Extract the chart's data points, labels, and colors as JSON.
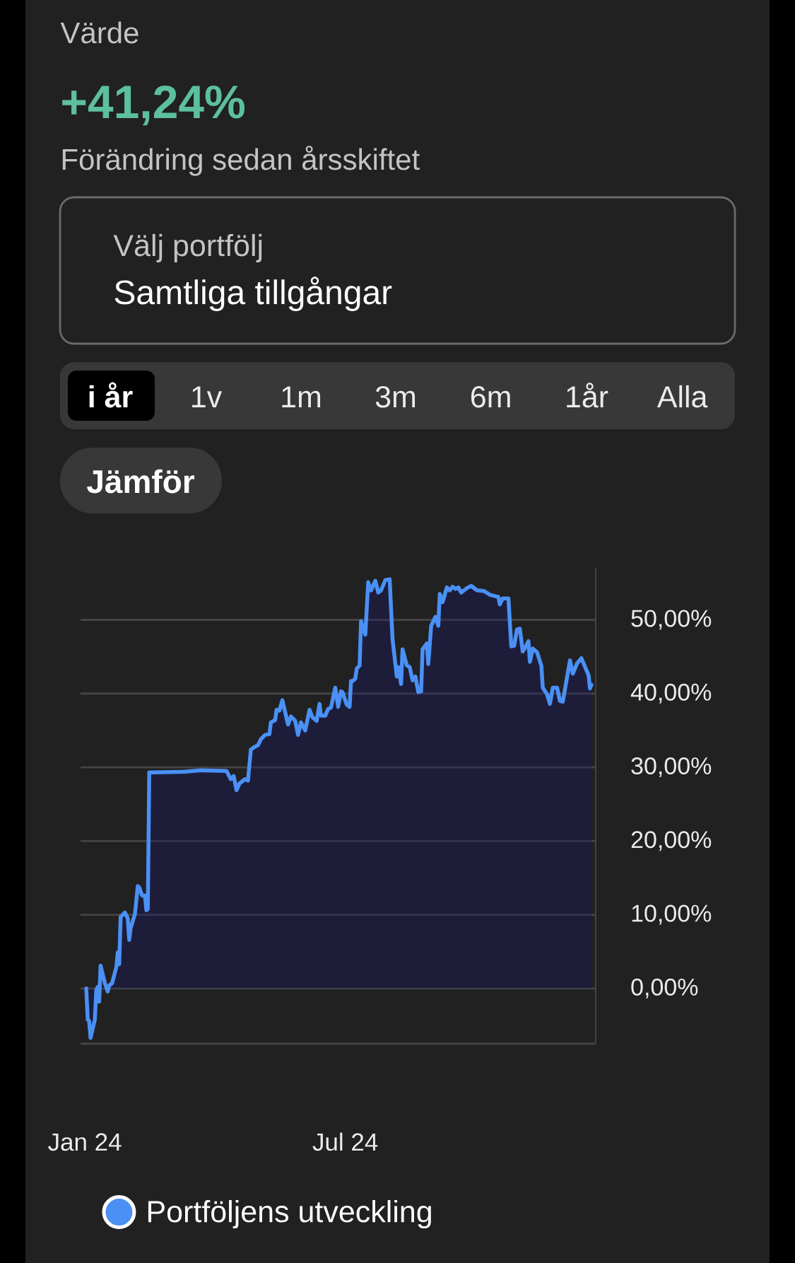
{
  "chart_data": {
    "type": "area",
    "title": "Värde",
    "subtitle": "+41,24%",
    "annotations": [
      "Förändring sedan årsskiftet",
      "Välj portfölj",
      "Samtliga tillgångar",
      "i år",
      "1v",
      "1m",
      "3m",
      "6m",
      "1år",
      "Alla",
      "Jämför"
    ],
    "x": [
      "2024-01-02",
      "2024-01-03",
      "2024-01-04",
      "2024-01-05",
      "2024-01-08",
      "2024-01-09",
      "2024-01-10",
      "2024-01-11",
      "2024-01-12",
      "2024-01-15",
      "2024-01-17",
      "2024-01-18",
      "2024-01-20",
      "2024-01-23",
      "2024-01-24",
      "2024-01-25",
      "2024-01-26",
      "2024-01-29",
      "2024-01-31",
      "2024-02-01",
      "2024-02-02",
      "2024-02-05",
      "2024-02-07",
      "2024-02-08",
      "2024-02-10",
      "2024-02-12",
      "2024-02-13",
      "2024-02-14",
      "2024-02-15",
      "2024-02-18",
      "2024-03-11",
      "2024-03-22",
      "2024-04-09",
      "2024-04-12",
      "2024-04-14",
      "2024-04-16",
      "2024-04-18",
      "2024-04-22",
      "2024-04-24",
      "2024-04-26",
      "2024-04-29",
      "2024-05-01",
      "2024-05-03",
      "2024-05-06",
      "2024-05-09",
      "2024-05-10",
      "2024-05-13",
      "2024-05-14",
      "2024-05-16",
      "2024-05-18",
      "2024-05-22",
      "2024-05-24",
      "2024-05-27",
      "2024-05-29",
      "2024-05-31",
      "2024-06-03",
      "2024-06-06",
      "2024-06-08",
      "2024-06-11",
      "2024-06-13",
      "2024-06-14",
      "2024-06-17",
      "2024-06-19",
      "2024-06-21",
      "2024-06-24",
      "2024-06-26",
      "2024-06-28",
      "2024-06-29",
      "2024-07-02",
      "2024-07-04",
      "2024-07-05",
      "2024-07-06",
      "2024-07-08",
      "2024-07-09",
      "2024-07-11",
      "2024-07-12",
      "2024-07-15",
      "2024-07-17",
      "2024-07-19",
      "2024-07-22",
      "2024-07-24",
      "2024-07-26",
      "2024-07-29",
      "2024-08-01",
      "2024-08-03",
      "2024-08-06",
      "2024-08-07",
      "2024-08-09",
      "2024-08-10",
      "2024-08-13",
      "2024-08-15",
      "2024-08-17",
      "2024-08-19",
      "2024-08-21",
      "2024-08-23",
      "2024-08-24",
      "2024-08-27",
      "2024-08-28",
      "2024-08-30",
      "2024-09-02",
      "2024-09-04",
      "2024-09-05",
      "2024-09-07",
      "2024-09-10",
      "2024-09-12",
      "2024-09-14",
      "2024-09-16",
      "2024-09-18",
      "2024-09-20",
      "2024-09-24",
      "2024-09-27",
      "2024-10-01",
      "2024-10-06",
      "2024-10-10",
      "2024-10-16",
      "2024-10-17",
      "2024-10-19",
      "2024-10-23",
      "2024-10-25",
      "2024-10-27",
      "2024-10-29",
      "2024-10-31",
      "2024-11-02",
      "2024-11-04",
      "2024-11-06",
      "2024-11-07",
      "2024-11-09",
      "2024-11-12",
      "2024-11-15",
      "2024-11-16",
      "2024-11-19",
      "2024-11-21",
      "2024-11-23",
      "2024-11-26",
      "2024-11-28",
      "2024-11-30",
      "2024-12-05",
      "2024-12-07",
      "2024-12-10",
      "2024-12-13",
      "2024-12-16",
      "2024-12-18",
      "2024-12-19",
      "2024-12-20"
    ],
    "series": [
      {
        "name": "Portföljens utveckling",
        "color": "#4a90f5",
        "values": [
          0.0,
          -4.2,
          -4.4,
          -6.7,
          -4.2,
          -0.2,
          0.2,
          -1.8,
          3.1,
          0.7,
          -0.4,
          0.4,
          0.7,
          2.9,
          4.9,
          3.3,
          9.7,
          10.3,
          9.5,
          6.6,
          8.2,
          10.1,
          13.9,
          13.7,
          12.6,
          12.6,
          10.6,
          10.8,
          29.3,
          29.3,
          29.4,
          29.6,
          29.5,
          28.4,
          28.8,
          26.9,
          27.8,
          28.4,
          28.2,
          32.4,
          32.8,
          33.0,
          33.8,
          34.4,
          34.5,
          36.1,
          36.4,
          37.8,
          37.7,
          39.1,
          35.8,
          36.9,
          36.3,
          34.4,
          36.1,
          35.0,
          37.8,
          36.8,
          36.3,
          38.6,
          37.0,
          37.0,
          37.9,
          38.1,
          40.8,
          38.2,
          40.3,
          40.2,
          38.5,
          38.2,
          41.7,
          41.7,
          42.0,
          43.4,
          43.8,
          49.8,
          48.0,
          55.1,
          54.0,
          55.3,
          53.7,
          54.0,
          55.4,
          55.5,
          47.4,
          42.3,
          43.6,
          41.3,
          46.0,
          43.8,
          43.6,
          41.8,
          42.3,
          40.2,
          40.3,
          46.0,
          46.8,
          44.0,
          49.2,
          50.4,
          49.2,
          53.5,
          52.4,
          54.4,
          54.0,
          54.5,
          54.2,
          54.4,
          53.7,
          54.3,
          54.6,
          54.0,
          53.9,
          53.4,
          53.1,
          52.1,
          52.9,
          52.9,
          46.4,
          46.5,
          48.7,
          48.8,
          45.7,
          46.3,
          47.1,
          44.3,
          46.1,
          45.6,
          43.8,
          40.8,
          39.9,
          38.6,
          40.8,
          40.8,
          39.0,
          38.9,
          44.5,
          42.7,
          44.1,
          44.8,
          43.4,
          42.5,
          40.7,
          41.2
        ]
      }
    ],
    "xlim": [
      "2023-12-29",
      "2024-12-23"
    ],
    "xticks": [
      {
        "value": "2024-01-01",
        "label": "Jan 24"
      },
      {
        "value": "2024-07-01",
        "label": "Jul 24"
      }
    ],
    "ylim": [
      -7.5,
      57
    ],
    "yticks": [
      {
        "value": 0,
        "label": "0,00%"
      },
      {
        "value": 10,
        "label": "10,00%"
      },
      {
        "value": 20,
        "label": "20,00%"
      },
      {
        "value": 30,
        "label": "30,00%"
      },
      {
        "value": 40,
        "label": "40,00%"
      },
      {
        "value": 50,
        "label": "50,00%"
      }
    ],
    "grid": "y",
    "legend": "bottom left"
  }
}
